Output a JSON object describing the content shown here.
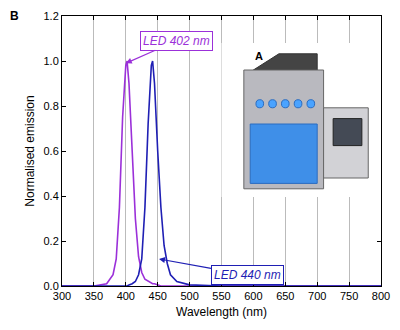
{
  "chart_data": {
    "type": "line",
    "x_label": "Wavelength (nm)",
    "y_label": "Normalised emission",
    "panel_labels": [
      "B",
      "A"
    ],
    "x": [
      300,
      350,
      370,
      380,
      385,
      390,
      395,
      400,
      402,
      405,
      410,
      415,
      420,
      425,
      430,
      435,
      440,
      442,
      445,
      450,
      455,
      460,
      465,
      470,
      480,
      500,
      550,
      600,
      700,
      800
    ],
    "series": [
      {
        "name": "LED 402 nm",
        "color": "#9b30d9",
        "values": [
          0,
          0,
          0.01,
          0.05,
          0.12,
          0.35,
          0.75,
          0.98,
          1.0,
          0.9,
          0.6,
          0.3,
          0.13,
          0.06,
          0.03,
          0.02,
          0.01,
          0.01,
          0.01,
          0.005,
          0,
          0,
          0,
          0,
          0,
          0,
          0,
          0,
          0,
          0
        ]
      },
      {
        "name": "LED 440 nm",
        "color": "#1f1fb4",
        "values": [
          0,
          0,
          0,
          0,
          0,
          0,
          0,
          0,
          0,
          0.005,
          0.01,
          0.02,
          0.05,
          0.12,
          0.35,
          0.72,
          0.98,
          1.0,
          0.9,
          0.6,
          0.35,
          0.18,
          0.1,
          0.05,
          0.02,
          0.005,
          0,
          0,
          0,
          0
        ]
      }
    ],
    "xlim": [
      300,
      800
    ],
    "xticks": [
      300,
      350,
      400,
      450,
      500,
      550,
      600,
      650,
      700,
      750,
      800
    ],
    "ylim": [
      0,
      1.2
    ],
    "yticks": [
      {
        "value": 0,
        "label": "0.0"
      },
      0.2,
      0.4,
      0.6,
      0.8,
      {
        "value": 1,
        "label": "1.0"
      },
      1.2
    ],
    "grid": "x",
    "legend": false
  }
}
